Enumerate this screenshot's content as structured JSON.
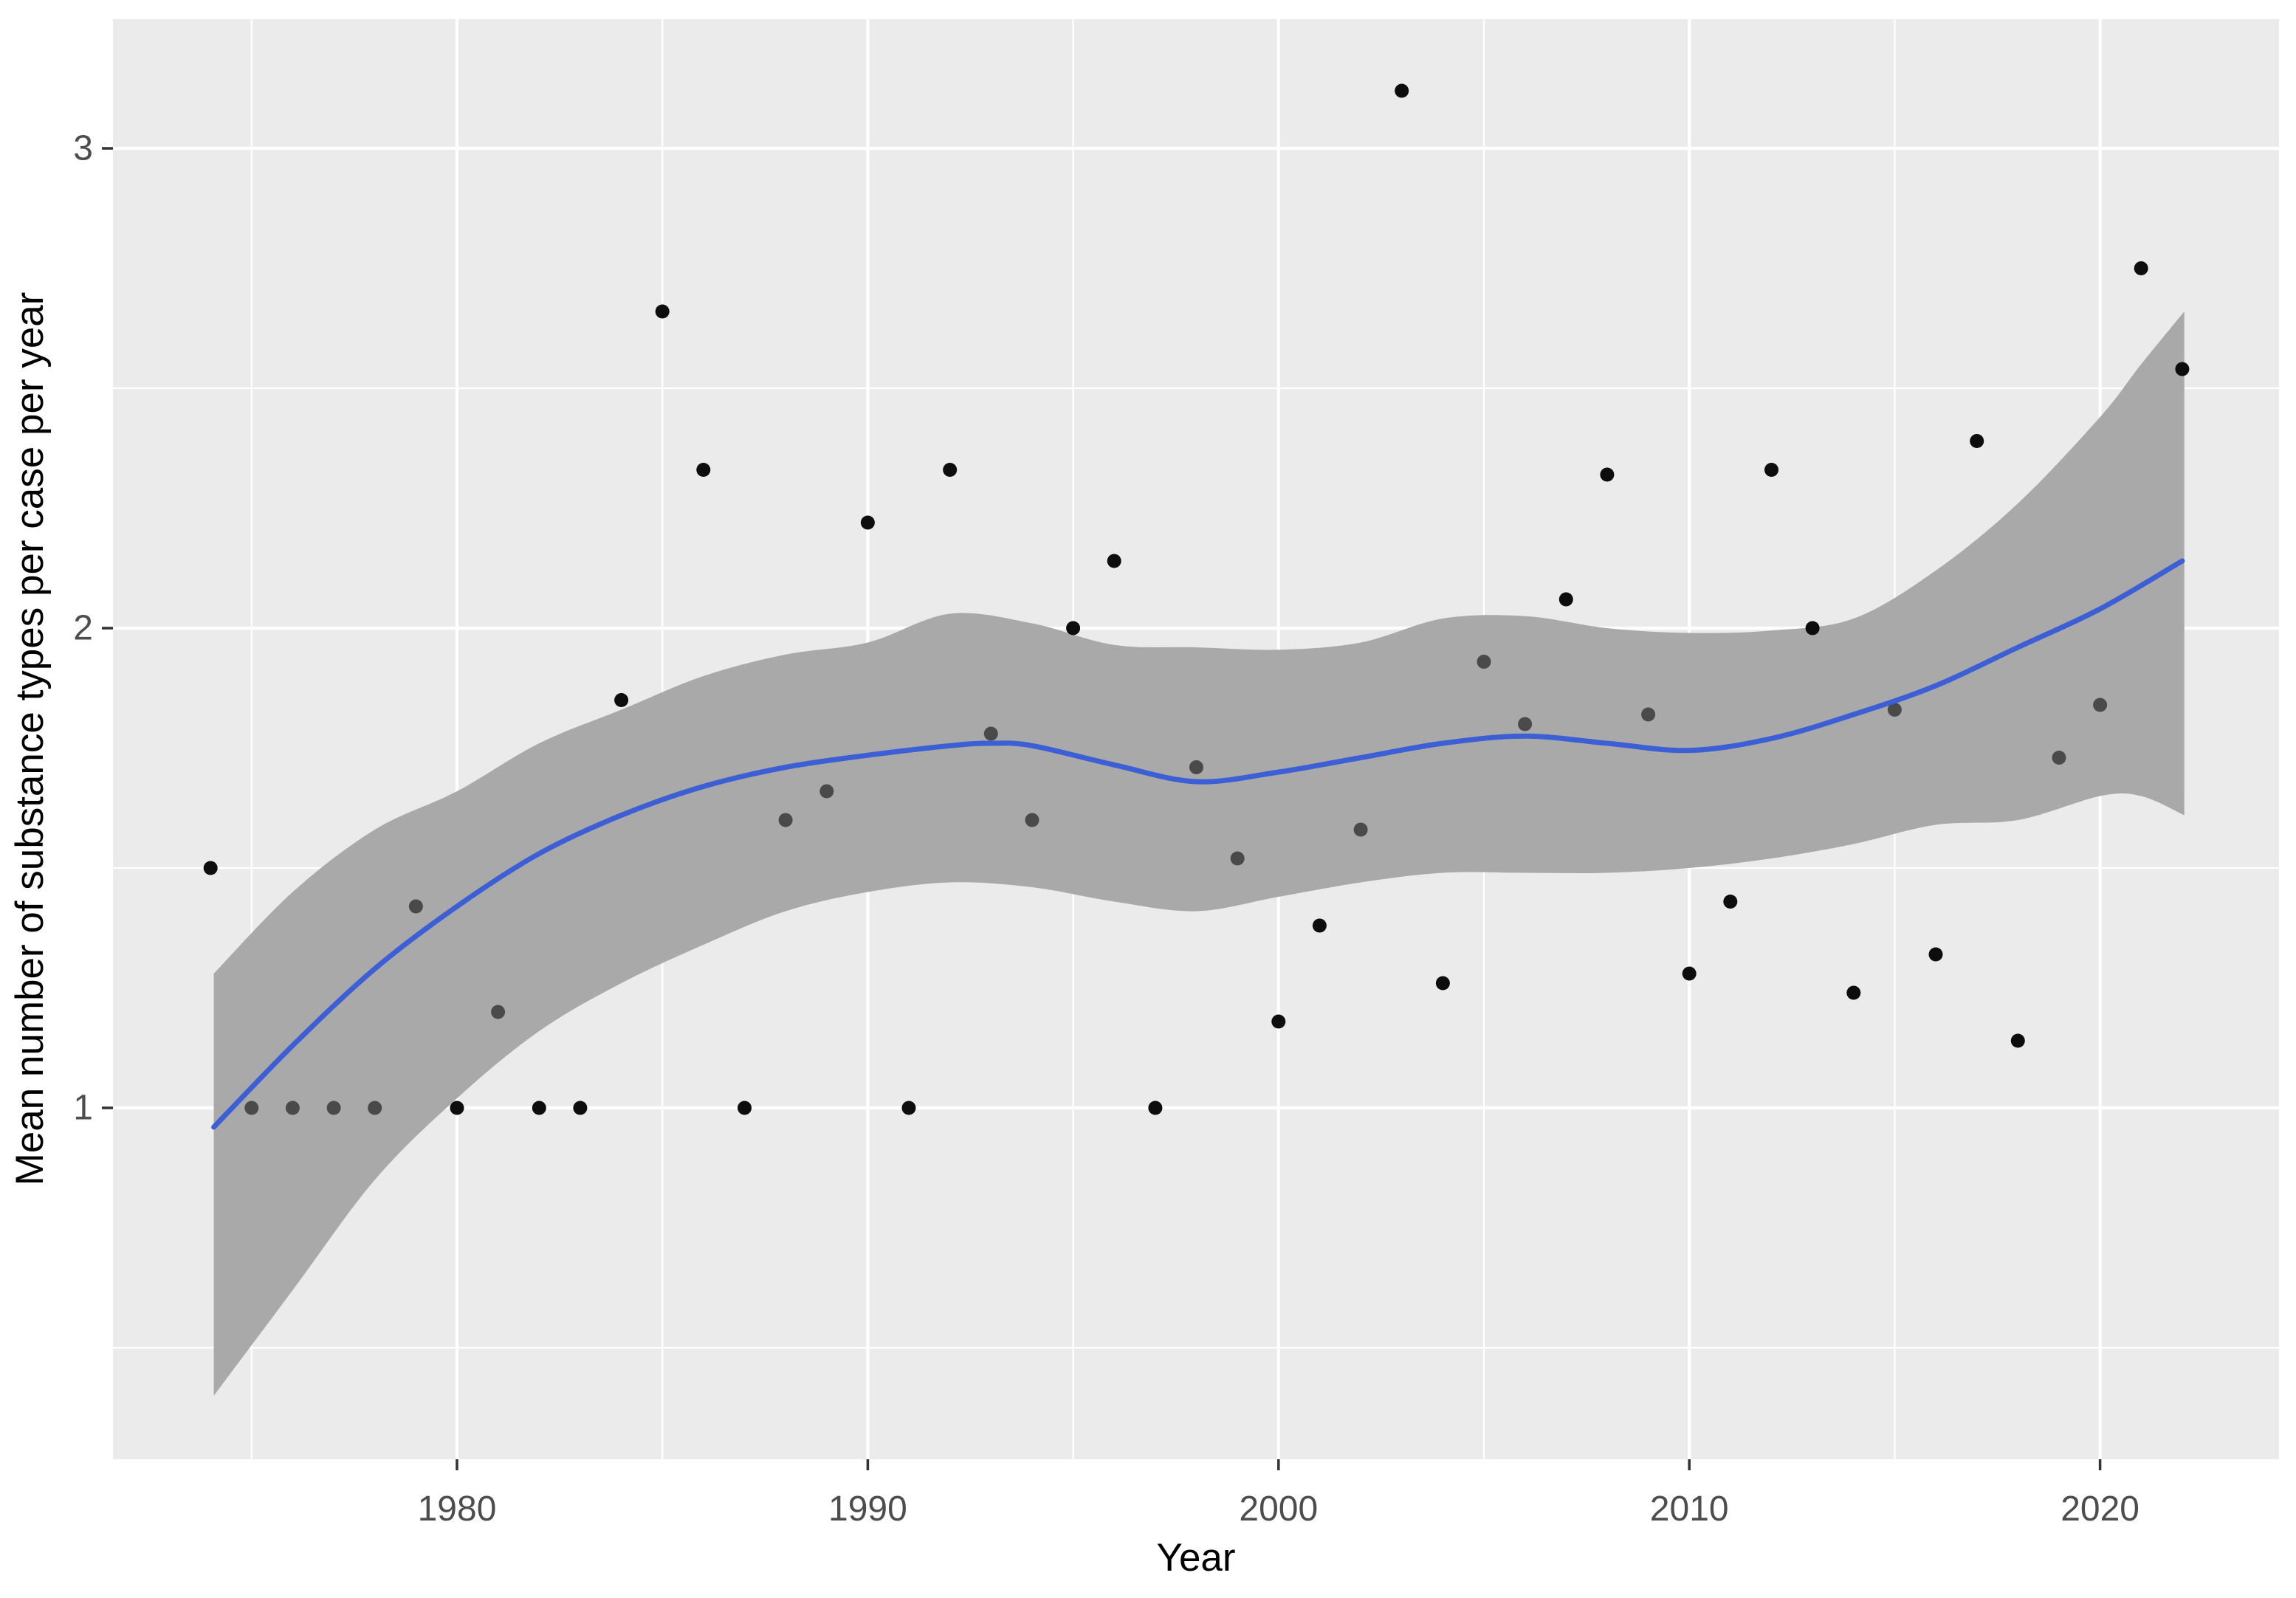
{
  "chart_data": {
    "type": "scatter",
    "title": "",
    "xlabel": "Year",
    "ylabel": "Mean number of substance types per case per year",
    "x_tick_labels": [
      "1980",
      "1990",
      "2000",
      "2010",
      "2020"
    ],
    "x_tick_years": [
      1980,
      1990,
      2000,
      2010,
      2020
    ],
    "x_minor_years": [
      1975,
      1985,
      1995,
      2005,
      2015
    ],
    "y_tick_labels": [
      "1",
      "2",
      "3"
    ],
    "y_tick_values": [
      1,
      2,
      3
    ],
    "y_minor_values": [
      0.5,
      1.5,
      2.5
    ],
    "xlim": [
      1971.63,
      2024.36
    ],
    "ylim": [
      0.27,
      3.27
    ],
    "grid": true,
    "legend": "none",
    "points": [
      {
        "year": 1974,
        "value": 1.5,
        "shade": "out"
      },
      {
        "year": 1975,
        "value": 1.0,
        "shade": "in"
      },
      {
        "year": 1976,
        "value": 1.0,
        "shade": "in"
      },
      {
        "year": 1977,
        "value": 1.0,
        "shade": "in"
      },
      {
        "year": 1978,
        "value": 1.0,
        "shade": "in"
      },
      {
        "year": 1979,
        "value": 1.42,
        "shade": "in"
      },
      {
        "year": 1980,
        "value": 1.0,
        "shade": "out"
      },
      {
        "year": 1981,
        "value": 1.2,
        "shade": "in"
      },
      {
        "year": 1982,
        "value": 1.0,
        "shade": "out"
      },
      {
        "year": 1983,
        "value": 1.0,
        "shade": "out"
      },
      {
        "year": 1984,
        "value": 1.85,
        "shade": "out"
      },
      {
        "year": 1985,
        "value": 2.66,
        "shade": "out"
      },
      {
        "year": 1986,
        "value": 2.33,
        "shade": "out"
      },
      {
        "year": 1987,
        "value": 1.0,
        "shade": "out"
      },
      {
        "year": 1988,
        "value": 1.6,
        "shade": "in"
      },
      {
        "year": 1989,
        "value": 1.66,
        "shade": "in"
      },
      {
        "year": 1990,
        "value": 2.22,
        "shade": "out"
      },
      {
        "year": 1991,
        "value": 1.0,
        "shade": "out"
      },
      {
        "year": 1992,
        "value": 2.33,
        "shade": "out"
      },
      {
        "year": 1993,
        "value": 1.78,
        "shade": "in"
      },
      {
        "year": 1994,
        "value": 1.6,
        "shade": "in"
      },
      {
        "year": 1995,
        "value": 2.0,
        "shade": "out"
      },
      {
        "year": 1996,
        "value": 2.14,
        "shade": "out"
      },
      {
        "year": 1997,
        "value": 1.0,
        "shade": "out"
      },
      {
        "year": 1998,
        "value": 1.71,
        "shade": "in"
      },
      {
        "year": 1999,
        "value": 1.52,
        "shade": "in"
      },
      {
        "year": 2000,
        "value": 1.18,
        "shade": "out"
      },
      {
        "year": 2001,
        "value": 1.38,
        "shade": "out"
      },
      {
        "year": 2002,
        "value": 1.58,
        "shade": "in"
      },
      {
        "year": 2003,
        "value": 3.12,
        "shade": "out"
      },
      {
        "year": 2004,
        "value": 1.26,
        "shade": "out"
      },
      {
        "year": 2005,
        "value": 1.93,
        "shade": "in"
      },
      {
        "year": 2006,
        "value": 1.8,
        "shade": "in"
      },
      {
        "year": 2007,
        "value": 2.06,
        "shade": "out"
      },
      {
        "year": 2008,
        "value": 2.32,
        "shade": "out"
      },
      {
        "year": 2009,
        "value": 1.82,
        "shade": "in"
      },
      {
        "year": 2010,
        "value": 1.28,
        "shade": "out"
      },
      {
        "year": 2011,
        "value": 1.43,
        "shade": "out"
      },
      {
        "year": 2012,
        "value": 2.33,
        "shade": "out"
      },
      {
        "year": 2013,
        "value": 2.0,
        "shade": "out"
      },
      {
        "year": 2014,
        "value": 1.24,
        "shade": "out"
      },
      {
        "year": 2015,
        "value": 1.83,
        "shade": "in"
      },
      {
        "year": 2016,
        "value": 1.32,
        "shade": "out"
      },
      {
        "year": 2017,
        "value": 2.39,
        "shade": "out"
      },
      {
        "year": 2018,
        "value": 1.14,
        "shade": "out"
      },
      {
        "year": 2019,
        "value": 1.73,
        "shade": "in"
      },
      {
        "year": 2020,
        "value": 1.84,
        "shade": "in"
      },
      {
        "year": 2021,
        "value": 2.75,
        "shade": "out"
      },
      {
        "year": 2022,
        "value": 2.54,
        "shade": "out"
      }
    ],
    "smooth_line": {
      "x": [
        1974.08,
        1976,
        1978,
        1980,
        1982,
        1984,
        1986,
        1988,
        1990,
        1992,
        1993,
        1994,
        1996,
        1998,
        2000,
        2002,
        2004,
        2006,
        2008,
        2010,
        2012,
        2014,
        2016,
        2018,
        2020,
        2022
      ],
      "y": [
        0.96,
        1.13,
        1.29,
        1.42,
        1.53,
        1.61,
        1.67,
        1.71,
        1.735,
        1.755,
        1.76,
        1.755,
        1.715,
        1.68,
        1.7,
        1.73,
        1.76,
        1.775,
        1.76,
        1.745,
        1.77,
        1.82,
        1.88,
        1.96,
        2.04,
        2.14
      ]
    },
    "ribbon": {
      "x": [
        1974.08,
        1976,
        1978,
        1980,
        1982,
        1984,
        1986,
        1988,
        1990,
        1992,
        1994,
        1996,
        1998,
        2000,
        2002,
        2004,
        2006,
        2008,
        2010,
        2012,
        2014,
        2016,
        2018,
        2020,
        2021,
        2022.05
      ],
      "upper": [
        1.28,
        1.45,
        1.58,
        1.66,
        1.76,
        1.83,
        1.9,
        1.945,
        1.97,
        2.03,
        2.01,
        1.965,
        1.96,
        1.955,
        1.97,
        2.02,
        2.025,
        2.0,
        1.99,
        1.995,
        2.02,
        2.12,
        2.26,
        2.44,
        2.55,
        2.66
      ],
      "lower": [
        0.4,
        0.62,
        0.85,
        1.02,
        1.16,
        1.26,
        1.34,
        1.41,
        1.45,
        1.47,
        1.46,
        1.43,
        1.41,
        1.44,
        1.47,
        1.49,
        1.49,
        1.49,
        1.5,
        1.52,
        1.55,
        1.59,
        1.6,
        1.65,
        1.65,
        1.61
      ]
    },
    "colors": {
      "panel_bg": "#EBEBEB",
      "grid": "#FFFFFF",
      "ribbon": "#A9A9A9",
      "smooth_line": "#3D5FD6",
      "point_outside": "#0D0D0D",
      "point_inside": "#4A4A4A",
      "tick_text": "#4D4D4D",
      "tick_mark": "#333333",
      "axis_title": "#000000"
    }
  }
}
